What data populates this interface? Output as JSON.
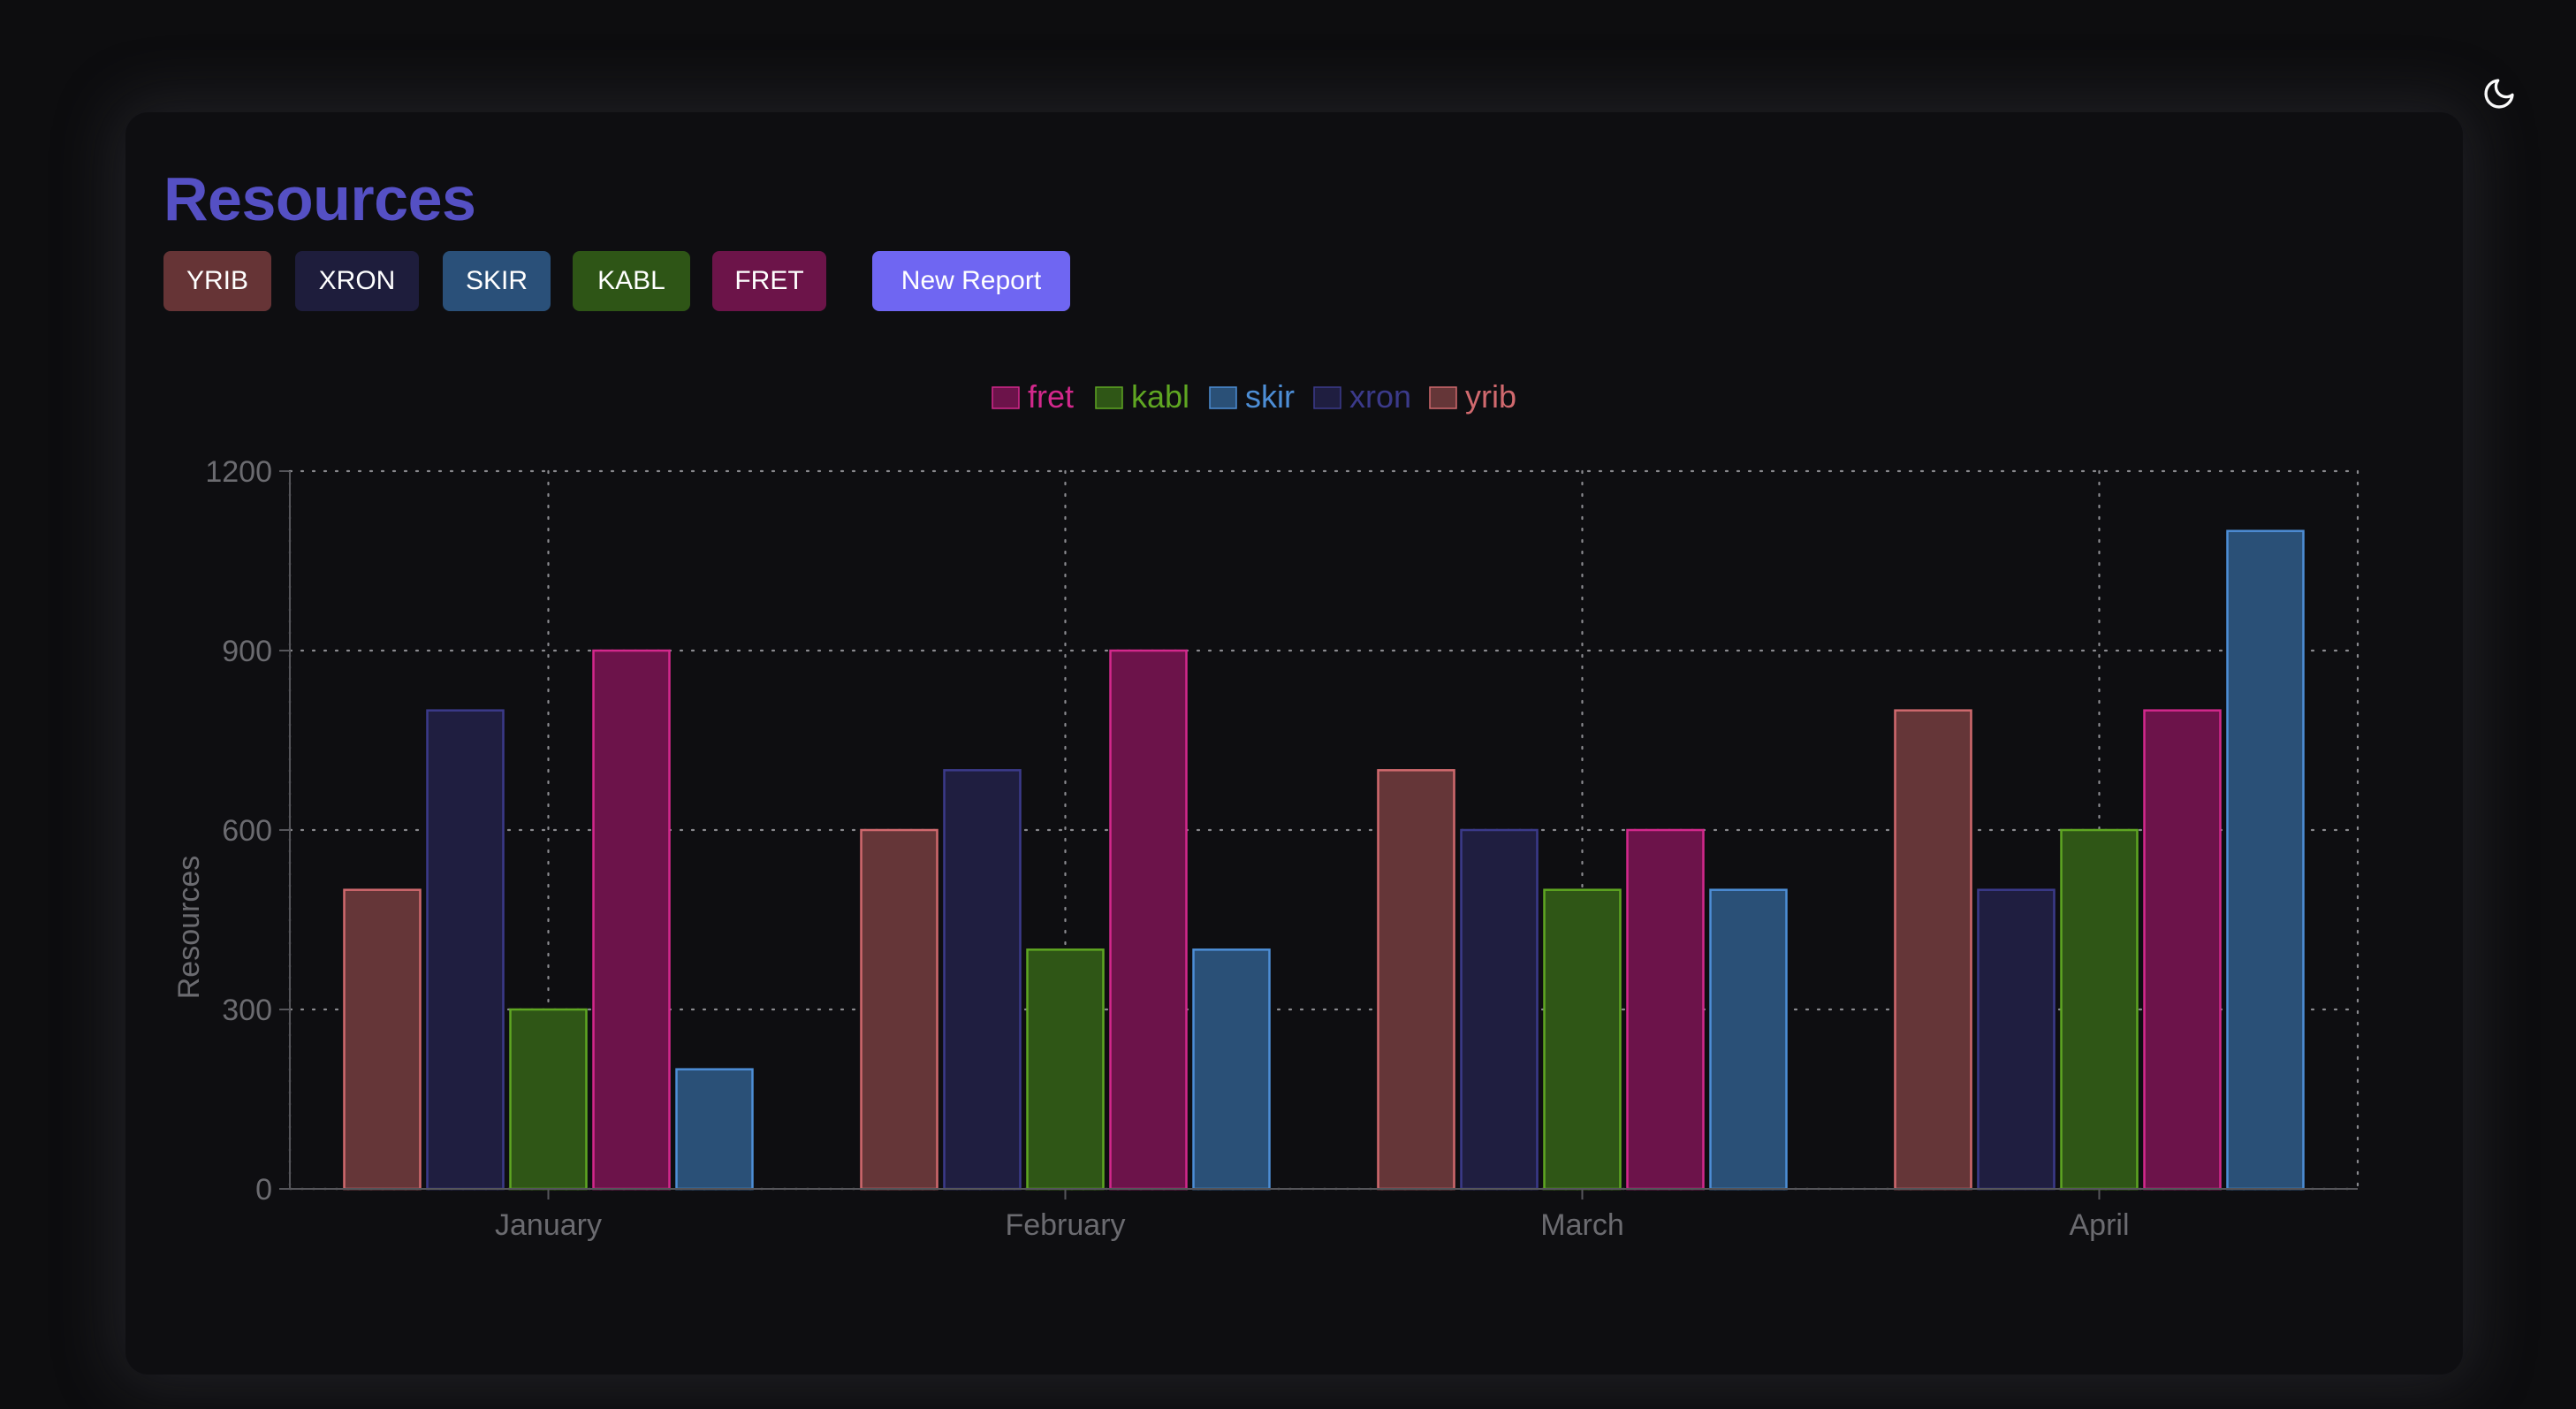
{
  "header": {
    "title": "Resources",
    "theme_toggle_icon": "moon-icon"
  },
  "toolbar": {
    "tags": [
      {
        "label": "YRIB",
        "color": "#663436"
      },
      {
        "label": "XRON",
        "color": "#1e1d3c"
      },
      {
        "label": "SKIR",
        "color": "#2a5079"
      },
      {
        "label": "KABL",
        "color": "#2e5516"
      },
      {
        "label": "FRET",
        "color": "#6c1449"
      }
    ],
    "new_report_label": "New Report",
    "new_report_color": "#6f66f2"
  },
  "chart_data": {
    "type": "bar",
    "title": "",
    "xlabel": "",
    "ylabel": "Resources",
    "ylim": [
      0,
      1200
    ],
    "yticks": [
      0,
      300,
      600,
      900,
      1200
    ],
    "grid": true,
    "legend_position": "top-center",
    "categories": [
      "January",
      "February",
      "March",
      "April"
    ],
    "legend_order": [
      "fret",
      "kabl",
      "skir",
      "xron",
      "yrib"
    ],
    "series": [
      {
        "name": "yrib",
        "values": [
          500,
          600,
          700,
          800
        ],
        "fill": "#653638",
        "stroke": "#d0696e"
      },
      {
        "name": "xron",
        "values": [
          800,
          700,
          600,
          500
        ],
        "fill": "#1f1e40",
        "stroke": "#3b3a8a"
      },
      {
        "name": "kabl",
        "values": [
          300,
          400,
          500,
          600
        ],
        "fill": "#2f5616",
        "stroke": "#5fa622"
      },
      {
        "name": "fret",
        "values": [
          900,
          900,
          600,
          800
        ],
        "fill": "#6c134a",
        "stroke": "#d3288c"
      },
      {
        "name": "skir",
        "values": [
          200,
          400,
          500,
          1100
        ],
        "fill": "#2a5077",
        "stroke": "#4d8ed6"
      }
    ]
  }
}
